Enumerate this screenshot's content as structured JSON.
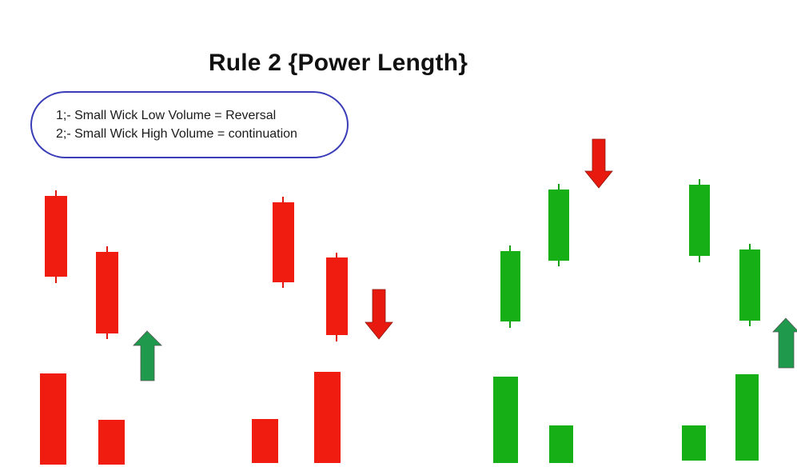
{
  "title": "Rule 2 {Power Length}",
  "rules": [
    "1;- Small Wick Low Volume = Reversal",
    "2;- Small Wick High Volume = continuation"
  ],
  "colors": {
    "bearish": "#f01c10",
    "bullish": "#16b016",
    "arrow_up": "#1f9a4c",
    "arrow_down": "#e8190f",
    "box_border": "#3a3db8"
  },
  "icons": {
    "up_arrow": "up-arrow-icon",
    "down_arrow": "down-arrow-icon"
  }
}
